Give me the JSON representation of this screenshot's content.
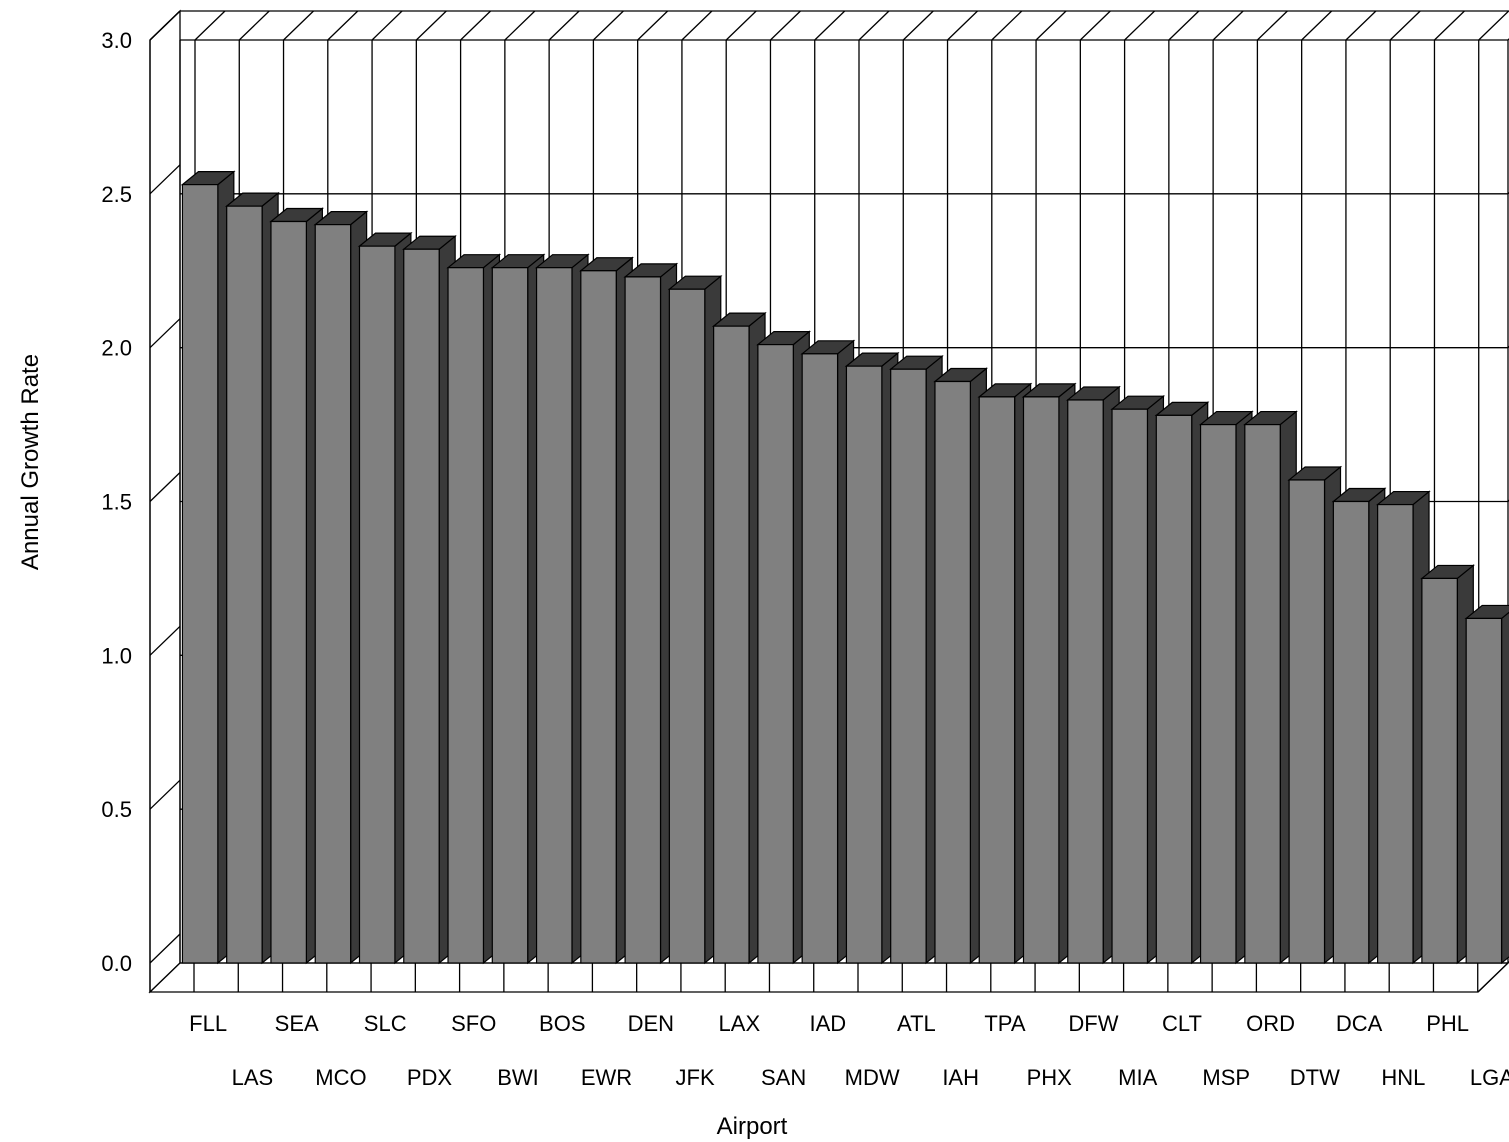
{
  "chart_data": {
    "type": "bar",
    "title": "",
    "xlabel": "Airport",
    "ylabel": "Annual Growth Rate",
    "ylim": [
      0,
      3.0
    ],
    "yticks": [
      "0.0",
      "0.5",
      "1.0",
      "1.5",
      "2.0",
      "2.5",
      "3.0"
    ],
    "grid": true,
    "three_d": true,
    "bar_color": "#808080",
    "bar_side_color": "#3a3a3a",
    "categories": [
      "FLL",
      "LAS",
      "SEA",
      "MCO",
      "SLC",
      "PDX",
      "SFO",
      "BWI",
      "BOS",
      "EWR",
      "DEN",
      "JFK",
      "LAX",
      "SAN",
      "IAD",
      "MDW",
      "ATL",
      "IAH",
      "TPA",
      "PHX",
      "DFW",
      "MIA",
      "CLT",
      "MSP",
      "ORD",
      "DTW",
      "DCA",
      "HNL",
      "PHL",
      "LGA"
    ],
    "values": [
      2.53,
      2.46,
      2.41,
      2.4,
      2.33,
      2.32,
      2.26,
      2.26,
      2.26,
      2.25,
      2.23,
      2.19,
      2.07,
      2.01,
      1.98,
      1.94,
      1.93,
      1.89,
      1.84,
      1.84,
      1.83,
      1.8,
      1.78,
      1.75,
      1.75,
      1.57,
      1.5,
      1.49,
      1.25,
      1.12
    ]
  }
}
